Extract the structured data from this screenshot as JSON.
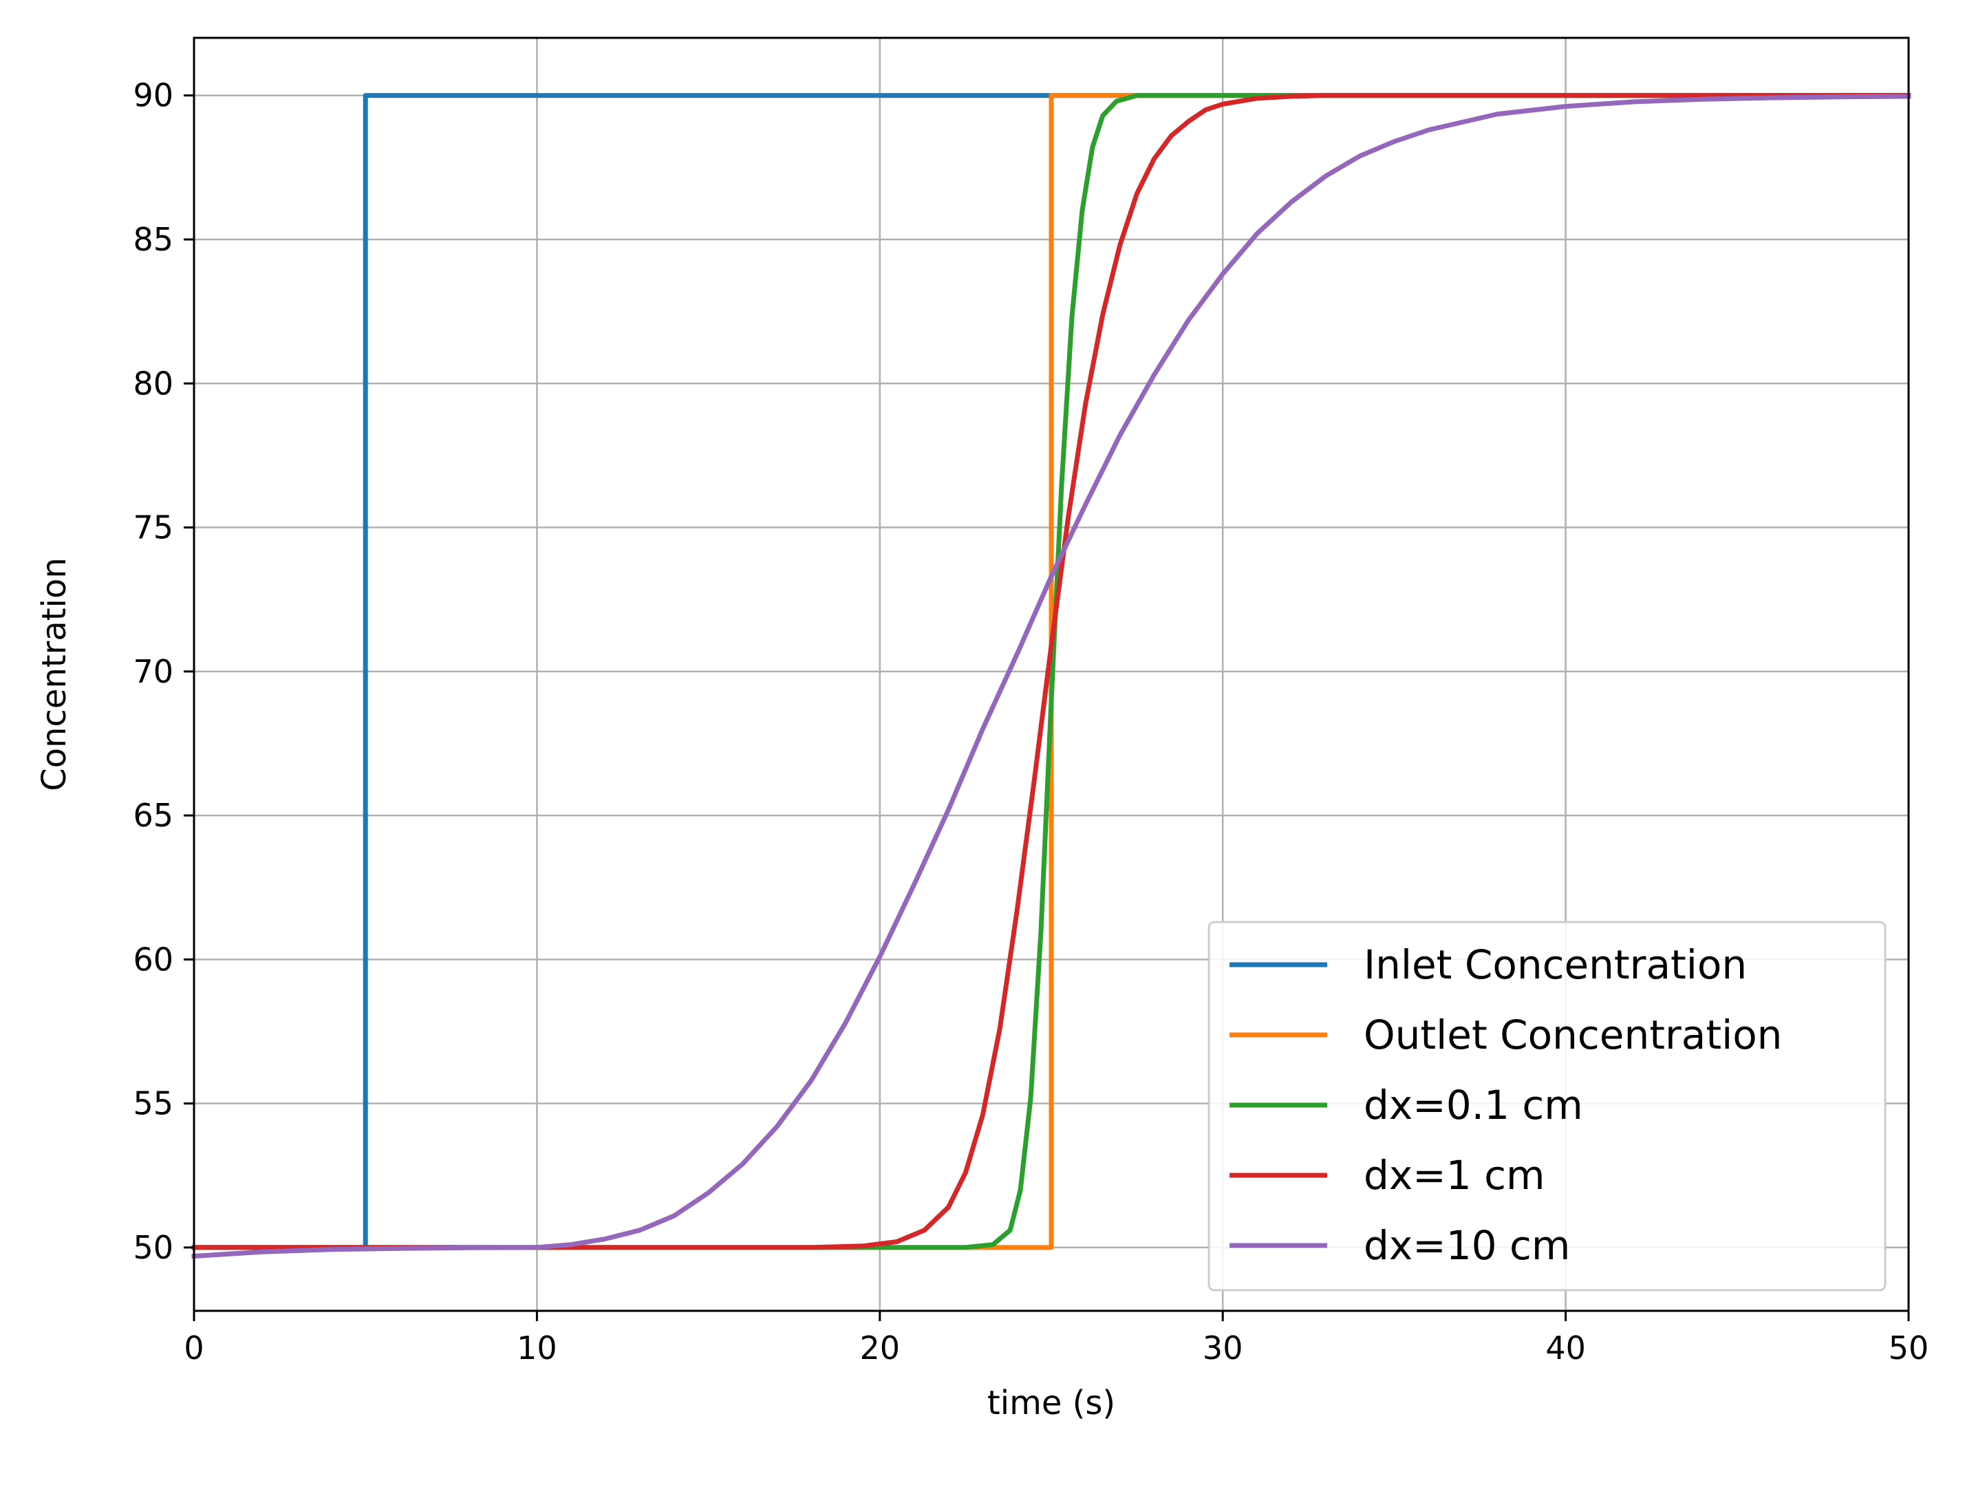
{
  "chart_data": {
    "type": "line",
    "title": "",
    "xlabel": "time (s)",
    "ylabel": "Concentration",
    "xlim": [
      0,
      50
    ],
    "ylim": [
      47.8,
      92
    ],
    "xticks": [
      0,
      10,
      20,
      30,
      40,
      50
    ],
    "yticks": [
      50,
      55,
      60,
      65,
      70,
      75,
      80,
      85,
      90
    ],
    "grid": true,
    "legend_position": "lower-right",
    "series": [
      {
        "name": "Inlet Concentration",
        "color": "#1f77b4",
        "x": [
          0,
          5,
          5,
          50
        ],
        "y": [
          50,
          50,
          90,
          90
        ]
      },
      {
        "name": "Outlet Concentration",
        "color": "#ff7f0e",
        "x": [
          0,
          25,
          25,
          50
        ],
        "y": [
          50,
          50,
          90,
          90
        ]
      },
      {
        "name": "dx=0.1 cm",
        "color": "#2ca02c",
        "x": [
          0,
          22.5,
          23.3,
          23.8,
          24.1,
          24.4,
          24.7,
          25.0,
          25.3,
          25.6,
          25.9,
          26.2,
          26.5,
          26.9,
          27.5,
          50
        ],
        "y": [
          50,
          50,
          50.1,
          50.6,
          52.0,
          55.2,
          61.0,
          69.0,
          76.5,
          82.3,
          86.0,
          88.2,
          89.3,
          89.8,
          90,
          90
        ]
      },
      {
        "name": "dx=1 cm",
        "color": "#d62728",
        "x": [
          0,
          10,
          18,
          19.5,
          20.5,
          21.3,
          22,
          22.5,
          23,
          23.5,
          24,
          24.5,
          25,
          25.5,
          26,
          26.5,
          27,
          27.5,
          28,
          28.5,
          29,
          29.5,
          30,
          31,
          32,
          33,
          50
        ],
        "y": [
          50,
          50,
          50,
          50.05,
          50.2,
          50.6,
          51.4,
          52.6,
          54.6,
          57.6,
          61.7,
          66.2,
          70.9,
          75.4,
          79.3,
          82.4,
          84.8,
          86.6,
          87.8,
          88.6,
          89.1,
          89.5,
          89.7,
          89.9,
          89.97,
          90,
          90
        ]
      },
      {
        "name": "dx=10 cm",
        "color": "#9467bd",
        "x": [
          0,
          2,
          4,
          6,
          8,
          10,
          11,
          12,
          13,
          14,
          15,
          16,
          17,
          18,
          19,
          20,
          21,
          22,
          23,
          24,
          25,
          26,
          27,
          28,
          29,
          30,
          31,
          32,
          33,
          34,
          35,
          36,
          38,
          40,
          42,
          44,
          46,
          48,
          50
        ],
        "y": [
          49.7,
          49.85,
          49.93,
          49.97,
          49.99,
          50.0,
          50.1,
          50.3,
          50.6,
          51.1,
          51.9,
          52.9,
          54.2,
          55.8,
          57.8,
          60.1,
          62.6,
          65.2,
          68.0,
          70.6,
          73.3,
          75.8,
          78.2,
          80.3,
          82.2,
          83.8,
          85.2,
          86.3,
          87.2,
          87.9,
          88.4,
          88.8,
          89.35,
          89.62,
          89.78,
          89.87,
          89.92,
          89.95,
          89.97
        ]
      }
    ]
  }
}
